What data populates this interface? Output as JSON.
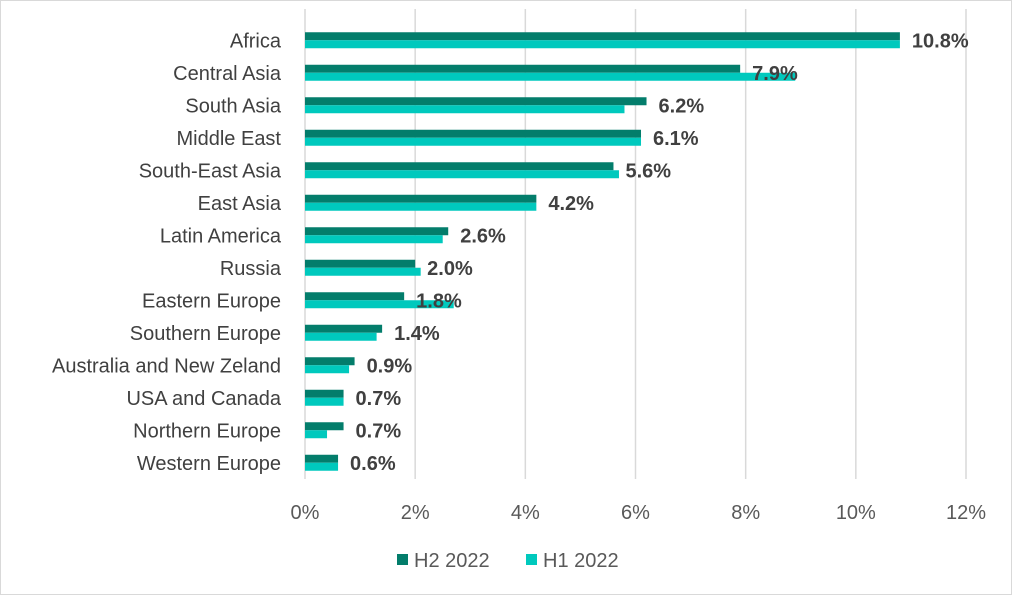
{
  "chart_data": {
    "type": "bar",
    "orientation": "horizontal",
    "title": "",
    "xlabel": "",
    "ylabel": "",
    "xlim": [
      0,
      12
    ],
    "x_ticks": [
      0,
      2,
      4,
      6,
      8,
      10,
      12
    ],
    "x_tick_labels": [
      "0%",
      "2%",
      "4%",
      "6%",
      "8%",
      "10%",
      "12%"
    ],
    "grid": "vertical",
    "legend_position": "bottom",
    "categories": [
      "Africa",
      "Central Asia",
      "South Asia",
      "Middle East",
      "South-East Asia",
      "East Asia",
      "Latin America",
      "Russia",
      "Eastern Europe",
      "Southern Europe",
      "Australia and New Zeland",
      "USA and Canada",
      "Northern Europe",
      "Western Europe"
    ],
    "series": [
      {
        "name": "H2 2022",
        "color": "#037d6b",
        "values": [
          10.8,
          7.9,
          6.2,
          6.1,
          5.6,
          4.2,
          2.6,
          2.0,
          1.8,
          1.4,
          0.9,
          0.7,
          0.7,
          0.6
        ]
      },
      {
        "name": "H1 2022",
        "color": "#00c9bd",
        "values": [
          10.8,
          8.9,
          5.8,
          6.1,
          5.7,
          4.2,
          2.5,
          2.1,
          2.7,
          1.3,
          0.8,
          0.7,
          0.4,
          0.6
        ]
      }
    ],
    "data_labels": [
      "10.8%",
      "7.9%",
      "6.2%",
      "6.1%",
      "5.6%",
      "4.2%",
      "2.6%",
      "2.0%",
      "1.8%",
      "1.4%",
      "0.9%",
      "0.7%",
      "0.7%",
      "0.6%"
    ]
  }
}
